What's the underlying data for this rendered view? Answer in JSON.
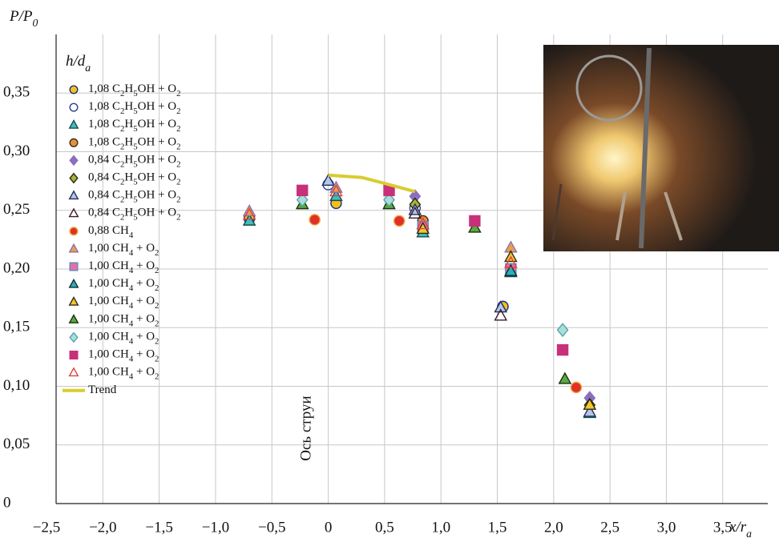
{
  "chart_data": {
    "type": "scatter",
    "ylabel": "P/P0",
    "xlabel": "x/ra",
    "legend_title": "h/da",
    "annotation": "Ось струи",
    "xlim": [
      -2.5,
      3.9
    ],
    "ylim": [
      0,
      0.4
    ],
    "xticks": [
      {
        "value": -2.5,
        "label": "−2,5"
      },
      {
        "value": -2.0,
        "label": "−2,0"
      },
      {
        "value": -1.5,
        "label": "−1,5"
      },
      {
        "value": -1.0,
        "label": "−1,0"
      },
      {
        "value": -0.5,
        "label": "−0,5"
      },
      0,
      {
        "value": 0.5,
        "label": "0,5"
      },
      {
        "value": 1.0,
        "label": "1,0"
      },
      {
        "value": 1.5,
        "label": "1,5"
      },
      {
        "value": 2.0,
        "label": "2,0"
      },
      {
        "value": 2.5,
        "label": "2,5"
      },
      {
        "value": 3.0,
        "label": "3,0"
      },
      {
        "value": 3.5,
        "label": "3,5"
      }
    ],
    "yticks": [
      0,
      {
        "value": 0.05,
        "label": "0,05"
      },
      {
        "value": 0.1,
        "label": "0,10"
      },
      {
        "value": 0.15,
        "label": "0,15"
      },
      {
        "value": 0.2,
        "label": "0,20"
      },
      {
        "value": 0.25,
        "label": "0,25"
      },
      {
        "value": 0.3,
        "label": "0,30"
      },
      {
        "value": 0.35,
        "label": "0,35"
      }
    ],
    "grid": true,
    "legend": "upper left",
    "series": [
      {
        "name": "1,08 C2H5OH + O2",
        "marker": "circle",
        "color": "#f2c21a",
        "edge": "#1c2f7a",
        "x": [
          -0.7,
          0.07,
          0.84,
          1.55
        ],
        "values": [
          0.243,
          0.256,
          0.237,
          0.168
        ]
      },
      {
        "name": "1,08 C2H5OH + O2",
        "marker": "circle",
        "color": "none",
        "edge": "#2a3f9a",
        "x": [
          -0.7,
          0.0,
          0.77,
          1.55
        ],
        "values": [
          0.245,
          0.272,
          0.252,
          0.168
        ]
      },
      {
        "name": "1,08 C2H5OH + O2",
        "marker": "triangle",
        "color": "#3fbfc0",
        "edge": "#1a4a4a",
        "x": [
          -0.7,
          0.07,
          0.84,
          1.62,
          2.32
        ],
        "values": [
          0.241,
          0.262,
          0.231,
          0.197,
          0.077
        ]
      },
      {
        "name": "1,08 C2H5OH + O2",
        "marker": "circle",
        "color": "#e8913a",
        "edge": "#3a2a1a",
        "x": [
          0.84,
          1.62
        ],
        "values": [
          0.241,
          0.2
        ]
      },
      {
        "name": "0,84 C2H5OH + O2",
        "marker": "diamond",
        "color": "#8a6fc0",
        "edge": "#8a6fc0",
        "x": [
          0.77,
          2.32
        ],
        "values": [
          0.262,
          0.09
        ]
      },
      {
        "name": "0,84 C2H5OH + O2",
        "marker": "diamond",
        "color": "#a9b33a",
        "edge": "#2a2a10",
        "x": [
          0.77,
          2.32
        ],
        "values": [
          0.255,
          0.084
        ]
      },
      {
        "name": "0,84 C2H5OH + O2",
        "marker": "triangle",
        "color": "#b8c4e8",
        "edge": "#1c2f5a",
        "x": [
          0.0,
          0.77,
          1.53,
          2.32
        ],
        "values": [
          0.275,
          0.25,
          0.167,
          0.078
        ]
      },
      {
        "name": "0,84 C2H5OH + O2",
        "marker": "triangle",
        "color": "none",
        "edge": "#3a1a2a",
        "x": [
          0.77,
          1.53
        ],
        "values": [
          0.247,
          0.16
        ]
      },
      {
        "name": "0,88 CH4",
        "marker": "circle",
        "color": "#e0302a",
        "edge": "#f0a030",
        "x": [
          -0.12,
          0.63,
          2.2
        ],
        "values": [
          0.242,
          0.241,
          0.099
        ]
      },
      {
        "name": "1,00 CH4 + O2",
        "marker": "triangle",
        "color": "#e8a050",
        "edge": "#8a70b0",
        "x": [
          -0.7,
          0.07,
          1.62
        ],
        "values": [
          0.249,
          0.269,
          0.218
        ]
      },
      {
        "name": "1,00 CH4 + O2",
        "marker": "square",
        "color": "#e870a0",
        "edge": "#5a8ac8",
        "x": [
          0.84,
          1.62
        ],
        "values": [
          0.236,
          0.2
        ]
      },
      {
        "name": "1,00 CH4 + O2",
        "marker": "triangle",
        "color": "#2ab0b8",
        "edge": "#102a30",
        "x": [
          1.62
        ],
        "values": [
          0.198
        ]
      },
      {
        "name": "1,00 CH4 + O2",
        "marker": "triangle",
        "color": "#f0c830",
        "edge": "#302a10",
        "x": [
          0.84,
          1.62,
          2.32
        ],
        "values": [
          0.234,
          0.21,
          0.084
        ]
      },
      {
        "name": "1,00 CH4 + O2",
        "marker": "triangle",
        "color": "#5aaa40",
        "edge": "#1a3010",
        "x": [
          -0.23,
          0.54,
          1.3,
          2.1
        ],
        "values": [
          0.255,
          0.255,
          0.235,
          0.106
        ]
      },
      {
        "name": "1,00 CH4 + O2",
        "marker": "diamond",
        "color": "#a8e0d8",
        "edge": "#5aa0b0",
        "x": [
          -0.23,
          0.54,
          2.08
        ],
        "values": [
          0.259,
          0.259,
          0.148
        ]
      },
      {
        "name": "1,00 CH4 + O2",
        "marker": "square",
        "color": "#c8307a",
        "edge": "#c8307a",
        "x": [
          -0.23,
          0.54,
          1.3,
          2.08
        ],
        "values": [
          0.267,
          0.267,
          0.241,
          0.131
        ]
      },
      {
        "name": "1,00 CH4 + O2",
        "marker": "triangle",
        "color": "none",
        "edge": "#e04040",
        "x": [
          -0.7,
          0.07,
          0.84,
          1.62
        ],
        "values": [
          0.246,
          0.266,
          0.238,
          0.205
        ]
      },
      {
        "name": "Trend",
        "marker": "line",
        "color": "#d8cc30",
        "x": [
          0.0,
          0.3,
          0.5,
          0.77
        ],
        "values": [
          0.28,
          0.278,
          0.273,
          0.266
        ]
      }
    ]
  }
}
